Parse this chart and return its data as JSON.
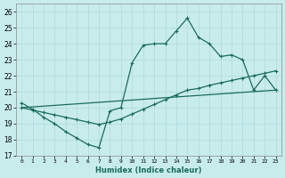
{
  "xlabel": "Humidex (Indice chaleur)",
  "bg_color": "#c8ecec",
  "grid_color": "#b0d8d8",
  "line_color": "#1a6b5a",
  "xlim": [
    -0.5,
    23.5
  ],
  "ylim": [
    17,
    26.5
  ],
  "yticks": [
    17,
    18,
    19,
    20,
    21,
    22,
    23,
    24,
    25,
    26
  ],
  "xticks": [
    0,
    1,
    2,
    3,
    4,
    5,
    6,
    7,
    8,
    9,
    10,
    11,
    12,
    13,
    14,
    15,
    16,
    17,
    18,
    19,
    20,
    21,
    22,
    23
  ],
  "series1_x": [
    0,
    1,
    2,
    3,
    4,
    5,
    6,
    7,
    8,
    9,
    10,
    11,
    12,
    13,
    14,
    15,
    16,
    17,
    18,
    19,
    20,
    21,
    22,
    23
  ],
  "series1_y": [
    20.3,
    19.9,
    19.4,
    19.0,
    18.5,
    18.1,
    17.7,
    17.5,
    19.8,
    20.0,
    22.8,
    23.9,
    24.0,
    24.0,
    24.8,
    25.6,
    24.4,
    24.0,
    23.2,
    23.3,
    23.0,
    21.1,
    22.0,
    21.1
  ],
  "series2_x": [
    0,
    1,
    2,
    3,
    4,
    5,
    6,
    7,
    8,
    9,
    10,
    11,
    12,
    13,
    14,
    15,
    16,
    17,
    18,
    19,
    20,
    21,
    22,
    23
  ],
  "series2_y": [
    20.0,
    19.85,
    19.7,
    19.55,
    19.4,
    19.25,
    19.1,
    18.95,
    19.1,
    19.3,
    19.6,
    19.9,
    20.2,
    20.5,
    20.8,
    21.1,
    21.2,
    21.4,
    21.55,
    21.7,
    21.85,
    22.0,
    22.15,
    22.3
  ],
  "series3_x": [
    0,
    23
  ],
  "series3_y": [
    20.0,
    21.1
  ]
}
